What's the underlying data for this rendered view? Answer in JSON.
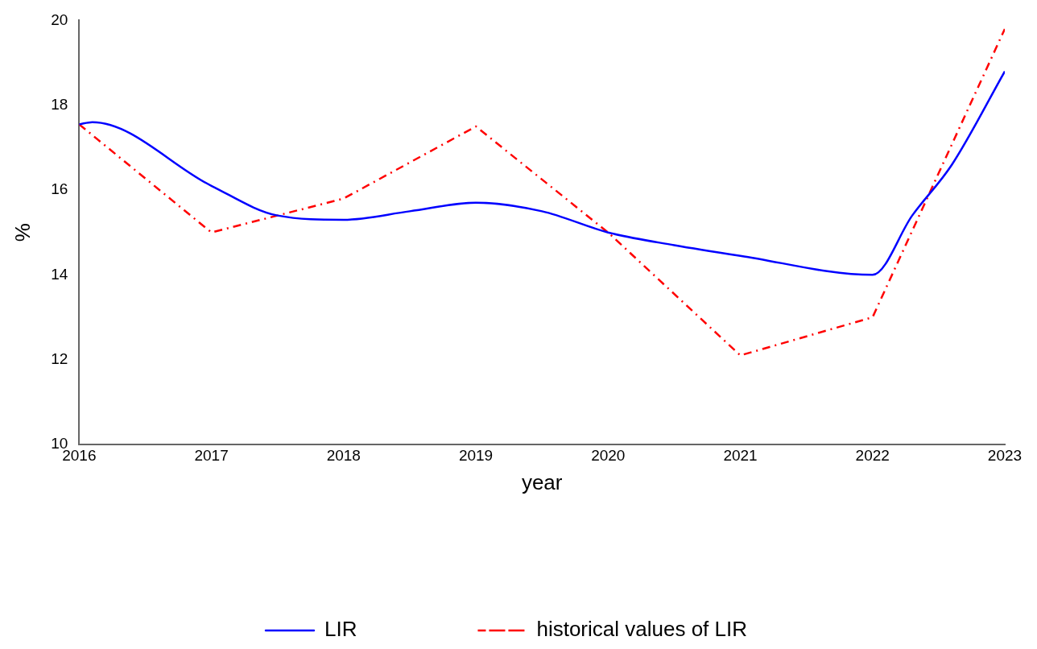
{
  "chart_data": {
    "type": "line",
    "xlabel": "year",
    "ylabel": "%",
    "xlim": [
      2016,
      2023
    ],
    "xticks": [
      2016,
      2017,
      2018,
      2019,
      2020,
      2021,
      2022,
      2023
    ],
    "ylim": [
      10,
      20
    ],
    "yticks": [
      10,
      12,
      14,
      16,
      18,
      20
    ],
    "grid": false,
    "legend": "bottom",
    "marker": "none",
    "series": [
      {
        "name": "LIR",
        "color": "#0000ff",
        "line_style": "solid",
        "x": [
          2016,
          2016.1,
          2017,
          2017.5,
          2018,
          2018.5,
          2019,
          2019.5,
          2020,
          2020.5,
          2021,
          2022,
          2022.3,
          2022.6,
          2023
        ],
        "values": [
          17.55,
          17.6,
          16.1,
          15.4,
          15.3,
          15.5,
          15.7,
          15.5,
          15.0,
          14.7,
          14.45,
          14.0,
          15.4,
          16.6,
          18.8
        ]
      },
      {
        "name": "historical values of LIR",
        "color": "#ff0000",
        "line_style": "dashed",
        "x": [
          2016,
          2017,
          2018,
          2019,
          2020,
          2021,
          2022,
          2023
        ],
        "values": [
          17.55,
          15.0,
          15.8,
          17.5,
          15.0,
          12.1,
          13.0,
          19.8
        ]
      }
    ]
  }
}
